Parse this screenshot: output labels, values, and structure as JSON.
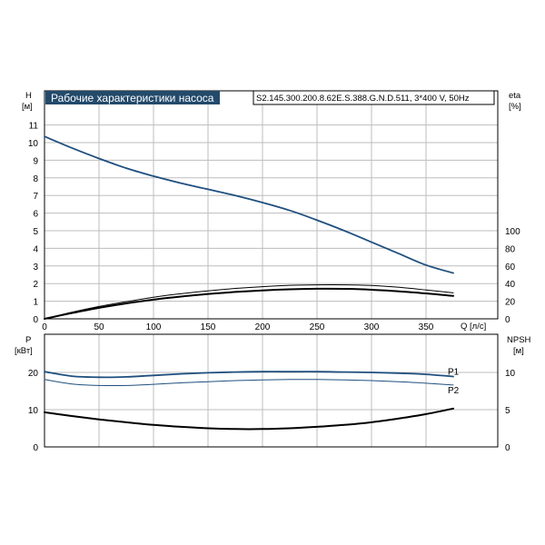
{
  "header": {
    "title": "Рабочие характеристики насоса",
    "model": "S2.145.300.200.8.62E.S.388.G.N.D.511, 3*400 V, 50Hz"
  },
  "axes": {
    "h_label": "H",
    "h_unit": "[м]",
    "eta_label": "eta",
    "eta_unit": "[%]",
    "q_label": "Q [л/с]",
    "p_label": "P",
    "p_unit": "[кВт]",
    "npsh_label": "NPSH",
    "npsh_unit": "[м]"
  },
  "colors": {
    "blue": "#1f4f7f",
    "black": "#000000",
    "title_bg": "#234a6b"
  },
  "chart_data": [
    {
      "type": "line",
      "panel": "top",
      "x_axis": {
        "label": "Q [л/с]",
        "range": [
          0,
          400
        ],
        "ticks": [
          0,
          50,
          100,
          150,
          200,
          250,
          300,
          350
        ]
      },
      "y_left": {
        "label": "H",
        "unit": "[м]",
        "range": [
          0,
          12
        ],
        "ticks": [
          0,
          1,
          2,
          3,
          4,
          5,
          6,
          7,
          8,
          9,
          10,
          11
        ]
      },
      "y_right": {
        "label": "eta",
        "unit": "[%]",
        "range": [
          0,
          120
        ],
        "ticks": [
          0,
          20,
          40,
          60,
          80,
          100
        ]
      },
      "grid": true,
      "series": [
        {
          "axis": "left",
          "color": "blue",
          "width": 1.8,
          "x": [
            0,
            25,
            50,
            75,
            100,
            125,
            150,
            175,
            200,
            225,
            250,
            275,
            300,
            325,
            350,
            375
          ],
          "y": [
            10.35,
            9.7,
            9.1,
            8.55,
            8.1,
            7.7,
            7.35,
            7.0,
            6.6,
            6.15,
            5.6,
            5.0,
            4.35,
            3.7,
            3.05,
            2.6
          ]
        },
        {
          "axis": "right",
          "color": "black",
          "width": 1.0,
          "x": [
            0,
            25,
            50,
            75,
            100,
            125,
            150,
            175,
            200,
            225,
            250,
            275,
            300,
            325,
            350,
            375
          ],
          "y": [
            0,
            7.5,
            14,
            19.5,
            24.5,
            28.5,
            31.8,
            34.5,
            36.5,
            38,
            38.6,
            38.6,
            37.8,
            35.8,
            32.8,
            29.5
          ]
        },
        {
          "axis": "right",
          "color": "black",
          "width": 2.0,
          "x": [
            0,
            25,
            50,
            75,
            100,
            125,
            150,
            175,
            200,
            225,
            250,
            275,
            300,
            325,
            350,
            375
          ],
          "y": [
            0,
            6.5,
            12.5,
            17.5,
            21.8,
            25.3,
            28.2,
            30.5,
            32.3,
            33.5,
            34.1,
            34.0,
            33.0,
            31.2,
            28.9,
            26.0
          ]
        }
      ]
    },
    {
      "type": "line",
      "panel": "bottom",
      "x_axis": {
        "range": [
          0,
          400
        ],
        "ticks": [
          0,
          50,
          100,
          150,
          200,
          250,
          300,
          350
        ]
      },
      "y_left": {
        "label": "P",
        "unit": "[кВт]",
        "range": [
          0,
          24
        ],
        "ticks": [
          0,
          10,
          20
        ]
      },
      "y_right": {
        "label": "NPSH",
        "unit": "[м]",
        "range": [
          0,
          12
        ],
        "ticks": [
          0,
          5,
          10
        ]
      },
      "grid": true,
      "series": [
        {
          "name": "P1",
          "axis": "left",
          "color": "blue",
          "width": 1.8,
          "x": [
            0,
            25,
            50,
            75,
            100,
            125,
            150,
            175,
            200,
            225,
            250,
            275,
            300,
            325,
            350,
            375
          ],
          "y": [
            20.2,
            19.0,
            18.7,
            18.8,
            19.2,
            19.6,
            19.9,
            20.1,
            20.2,
            20.2,
            20.2,
            20.1,
            20.0,
            19.8,
            19.5,
            18.9
          ]
        },
        {
          "name": "P2",
          "axis": "left",
          "color": "blue",
          "width": 1.0,
          "x": [
            0,
            25,
            50,
            75,
            100,
            125,
            150,
            175,
            200,
            225,
            250,
            275,
            300,
            325,
            350,
            375
          ],
          "y": [
            18.1,
            16.9,
            16.5,
            16.5,
            16.8,
            17.2,
            17.5,
            17.8,
            18.0,
            18.1,
            18.1,
            18.0,
            17.8,
            17.5,
            17.1,
            16.6
          ]
        },
        {
          "axis": "right",
          "color": "black",
          "width": 2.0,
          "x": [
            0,
            25,
            50,
            75,
            100,
            125,
            150,
            175,
            200,
            225,
            250,
            275,
            300,
            325,
            350,
            375
          ],
          "y": [
            4.65,
            4.15,
            3.7,
            3.3,
            2.95,
            2.7,
            2.5,
            2.4,
            2.4,
            2.5,
            2.7,
            2.95,
            3.3,
            3.8,
            4.4,
            5.15
          ]
        }
      ]
    }
  ]
}
